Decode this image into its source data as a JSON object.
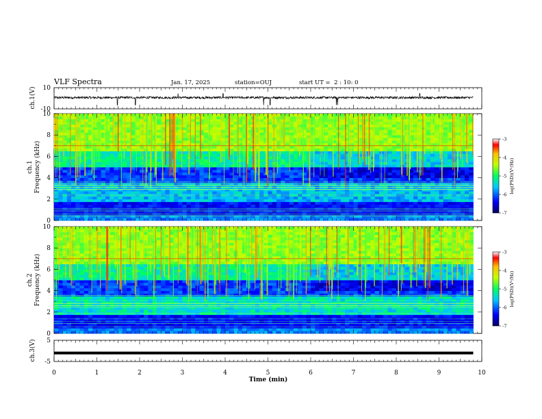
{
  "header": {
    "title": "VLF Spectra",
    "date": "Jan. 17, 2025",
    "station": "station=OUJ",
    "start_ut": "start UT =  2 : 10: 0"
  },
  "chart_data": [
    {
      "type": "line",
      "panel": "ch1-waveform",
      "ylabel": "ch.1(V)",
      "ylim": [
        -10,
        10
      ],
      "y_tick_labels": [
        "10",
        "-10"
      ],
      "x_range_min": [
        0,
        9.8
      ],
      "trace": "noisy waveform centered slightly above 0 V with downward spikes near 1.5, 1.9, 4.9, 6.6 min",
      "color": "#000000"
    },
    {
      "type": "heatmap",
      "panel": "ch1-spectrogram",
      "ylabel": "ch.1 Frequency (kHz)",
      "ylabel_lines": [
        "ch.1",
        "Frequency (kHz)"
      ],
      "ylim": [
        0,
        10
      ],
      "y_ticks": [
        0,
        2,
        4,
        6,
        8,
        10
      ],
      "colorbar": {
        "label": "log(PSD)(V²/Hz)",
        "range": [
          -7,
          -3
        ],
        "ticks": [
          "-3",
          "-4",
          "-5",
          "-6",
          "-7"
        ]
      },
      "notable_lines_khz": [
        7.0,
        3.3,
        3.1,
        2.9
      ],
      "colormap": "rainbow"
    },
    {
      "type": "heatmap",
      "panel": "ch2-spectrogram",
      "ylabel": "ch.2 Frequency (kHz)",
      "ylabel_lines": [
        "ch.2",
        "Frequency (kHz)"
      ],
      "ylim": [
        0,
        10
      ],
      "y_ticks": [
        0,
        2,
        4,
        6,
        8,
        10
      ],
      "colorbar": {
        "label": "log(PSD)(V²/Hz)",
        "range": [
          -7,
          -3
        ],
        "ticks": [
          "-3",
          "-4",
          "-5",
          "-6",
          "-7"
        ]
      },
      "notable_lines_khz": [
        7.0,
        2.6,
        2.8
      ],
      "colormap": "rainbow"
    },
    {
      "type": "line",
      "panel": "ch3-waveform",
      "ylabel": "ch.3(V)",
      "ylim": [
        -5,
        5
      ],
      "y_tick_labels": [
        "5",
        "-5"
      ],
      "constant_value": -1.0,
      "color": "#000000"
    }
  ],
  "x_axis": {
    "label": "Time (min)",
    "range": [
      0,
      10
    ],
    "ticks": [
      "0",
      "1",
      "2",
      "3",
      "4",
      "5",
      "6",
      "7",
      "8",
      "9",
      "10"
    ]
  }
}
